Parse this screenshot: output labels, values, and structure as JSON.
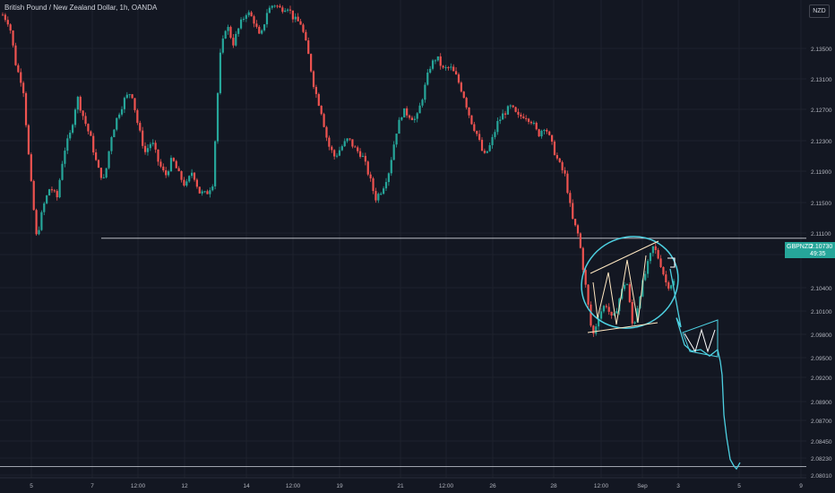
{
  "header": {
    "title": "British Pound / New Zealand Dollar, 1h, OANDA",
    "currency": "NZD"
  },
  "price_tag": {
    "symbol": "GBPNZD",
    "price": "2.10730",
    "countdown": "49:35"
  },
  "colors": {
    "background": "#131722",
    "up": "#26a69a",
    "down": "#ef5350",
    "grid": "#1e222d",
    "level_line": "#d1d4dc",
    "annotation": "#4dd0e1",
    "pattern": "#ffe8c2"
  },
  "chart_data": {
    "type": "candlestick",
    "title": "British Pound / New Zealand Dollar, 1h, OANDA",
    "y_ticks": [
      "2.13500",
      "2.13100",
      "2.12700",
      "2.12300",
      "2.11900",
      "2.11500",
      "2.11100",
      "2.10700",
      "2.10400",
      "2.10100",
      "2.09800",
      "2.09500",
      "2.09200",
      "2.08900",
      "2.08700",
      "2.08450",
      "2.08230",
      "2.08010"
    ],
    "x_ticks": [
      "5",
      "7",
      "12:00",
      "12",
      "14",
      "12:00",
      "19",
      "21",
      "12:00",
      "26",
      "28",
      "12:00",
      "Sep",
      "3",
      "5",
      "9"
    ],
    "ylim": [
      2.0801,
      2.1405
    ],
    "close_path": [
      [
        2.1391,
        2.138
      ],
      [
        2.1325,
        2.1302
      ],
      [
        2.1195,
        2.111
      ],
      [
        2.115,
        2.1175
      ],
      [
        2.116,
        2.1218
      ],
      [
        2.1242,
        2.1288
      ],
      [
        2.126,
        2.1235
      ],
      [
        2.1198,
        2.1182
      ],
      [
        2.1238,
        2.1265
      ],
      [
        2.1285,
        2.1295
      ],
      [
        2.125,
        2.1218
      ],
      [
        2.1232,
        2.1205
      ],
      [
        2.1188,
        2.121
      ],
      [
        2.119,
        2.1175
      ],
      [
        2.1195,
        2.1168
      ],
      [
        2.1165,
        2.118
      ],
      [
        2.1335,
        2.138
      ],
      [
        2.1355,
        2.1378
      ],
      [
        2.1395,
        2.1385
      ],
      [
        2.136,
        2.1395
      ],
      [
        2.1405,
        2.1398
      ],
      [
        2.1402,
        2.1385
      ],
      [
        2.138,
        2.1345
      ],
      [
        2.1298,
        2.127
      ],
      [
        2.1228,
        2.1212
      ],
      [
        2.1225,
        2.1235
      ],
      [
        2.1222,
        2.1215
      ],
      [
        2.119,
        2.116
      ],
      [
        2.1172,
        2.1195
      ],
      [
        2.1242,
        2.127
      ],
      [
        2.1265,
        2.1258
      ],
      [
        2.129,
        2.1325
      ],
      [
        2.1338,
        2.1322
      ],
      [
        2.1325,
        2.1312
      ],
      [
        2.129,
        2.126
      ],
      [
        2.124,
        2.1212
      ],
      [
        2.1228,
        2.1255
      ],
      [
        2.1268,
        2.1275
      ],
      [
        2.1262,
        2.1265
      ],
      [
        2.1258,
        2.124
      ],
      [
        2.1252,
        2.1228
      ],
      [
        2.1205,
        2.1188
      ],
      [
        2.1135,
        2.1112
      ],
      [
        2.105,
        2.0985
      ],
      [
        2.1015,
        2.1028
      ],
      [
        2.1005,
        2.1035
      ],
      [
        2.106,
        2.0995
      ],
      [
        2.104,
        2.1072
      ],
      [
        2.11,
        2.108
      ],
      [
        2.105,
        2.1055
      ]
    ]
  },
  "annotations": {
    "support_level": 2.111,
    "target_level": 2.0823,
    "drawn_path_points": [
      2.101,
      2.0976,
      2.0968,
      2.097,
      2.0962,
      2.097,
      2.0955,
      2.0938,
      2.0888,
      2.086,
      2.0832,
      2.0824,
      2.082,
      2.0828
    ]
  }
}
